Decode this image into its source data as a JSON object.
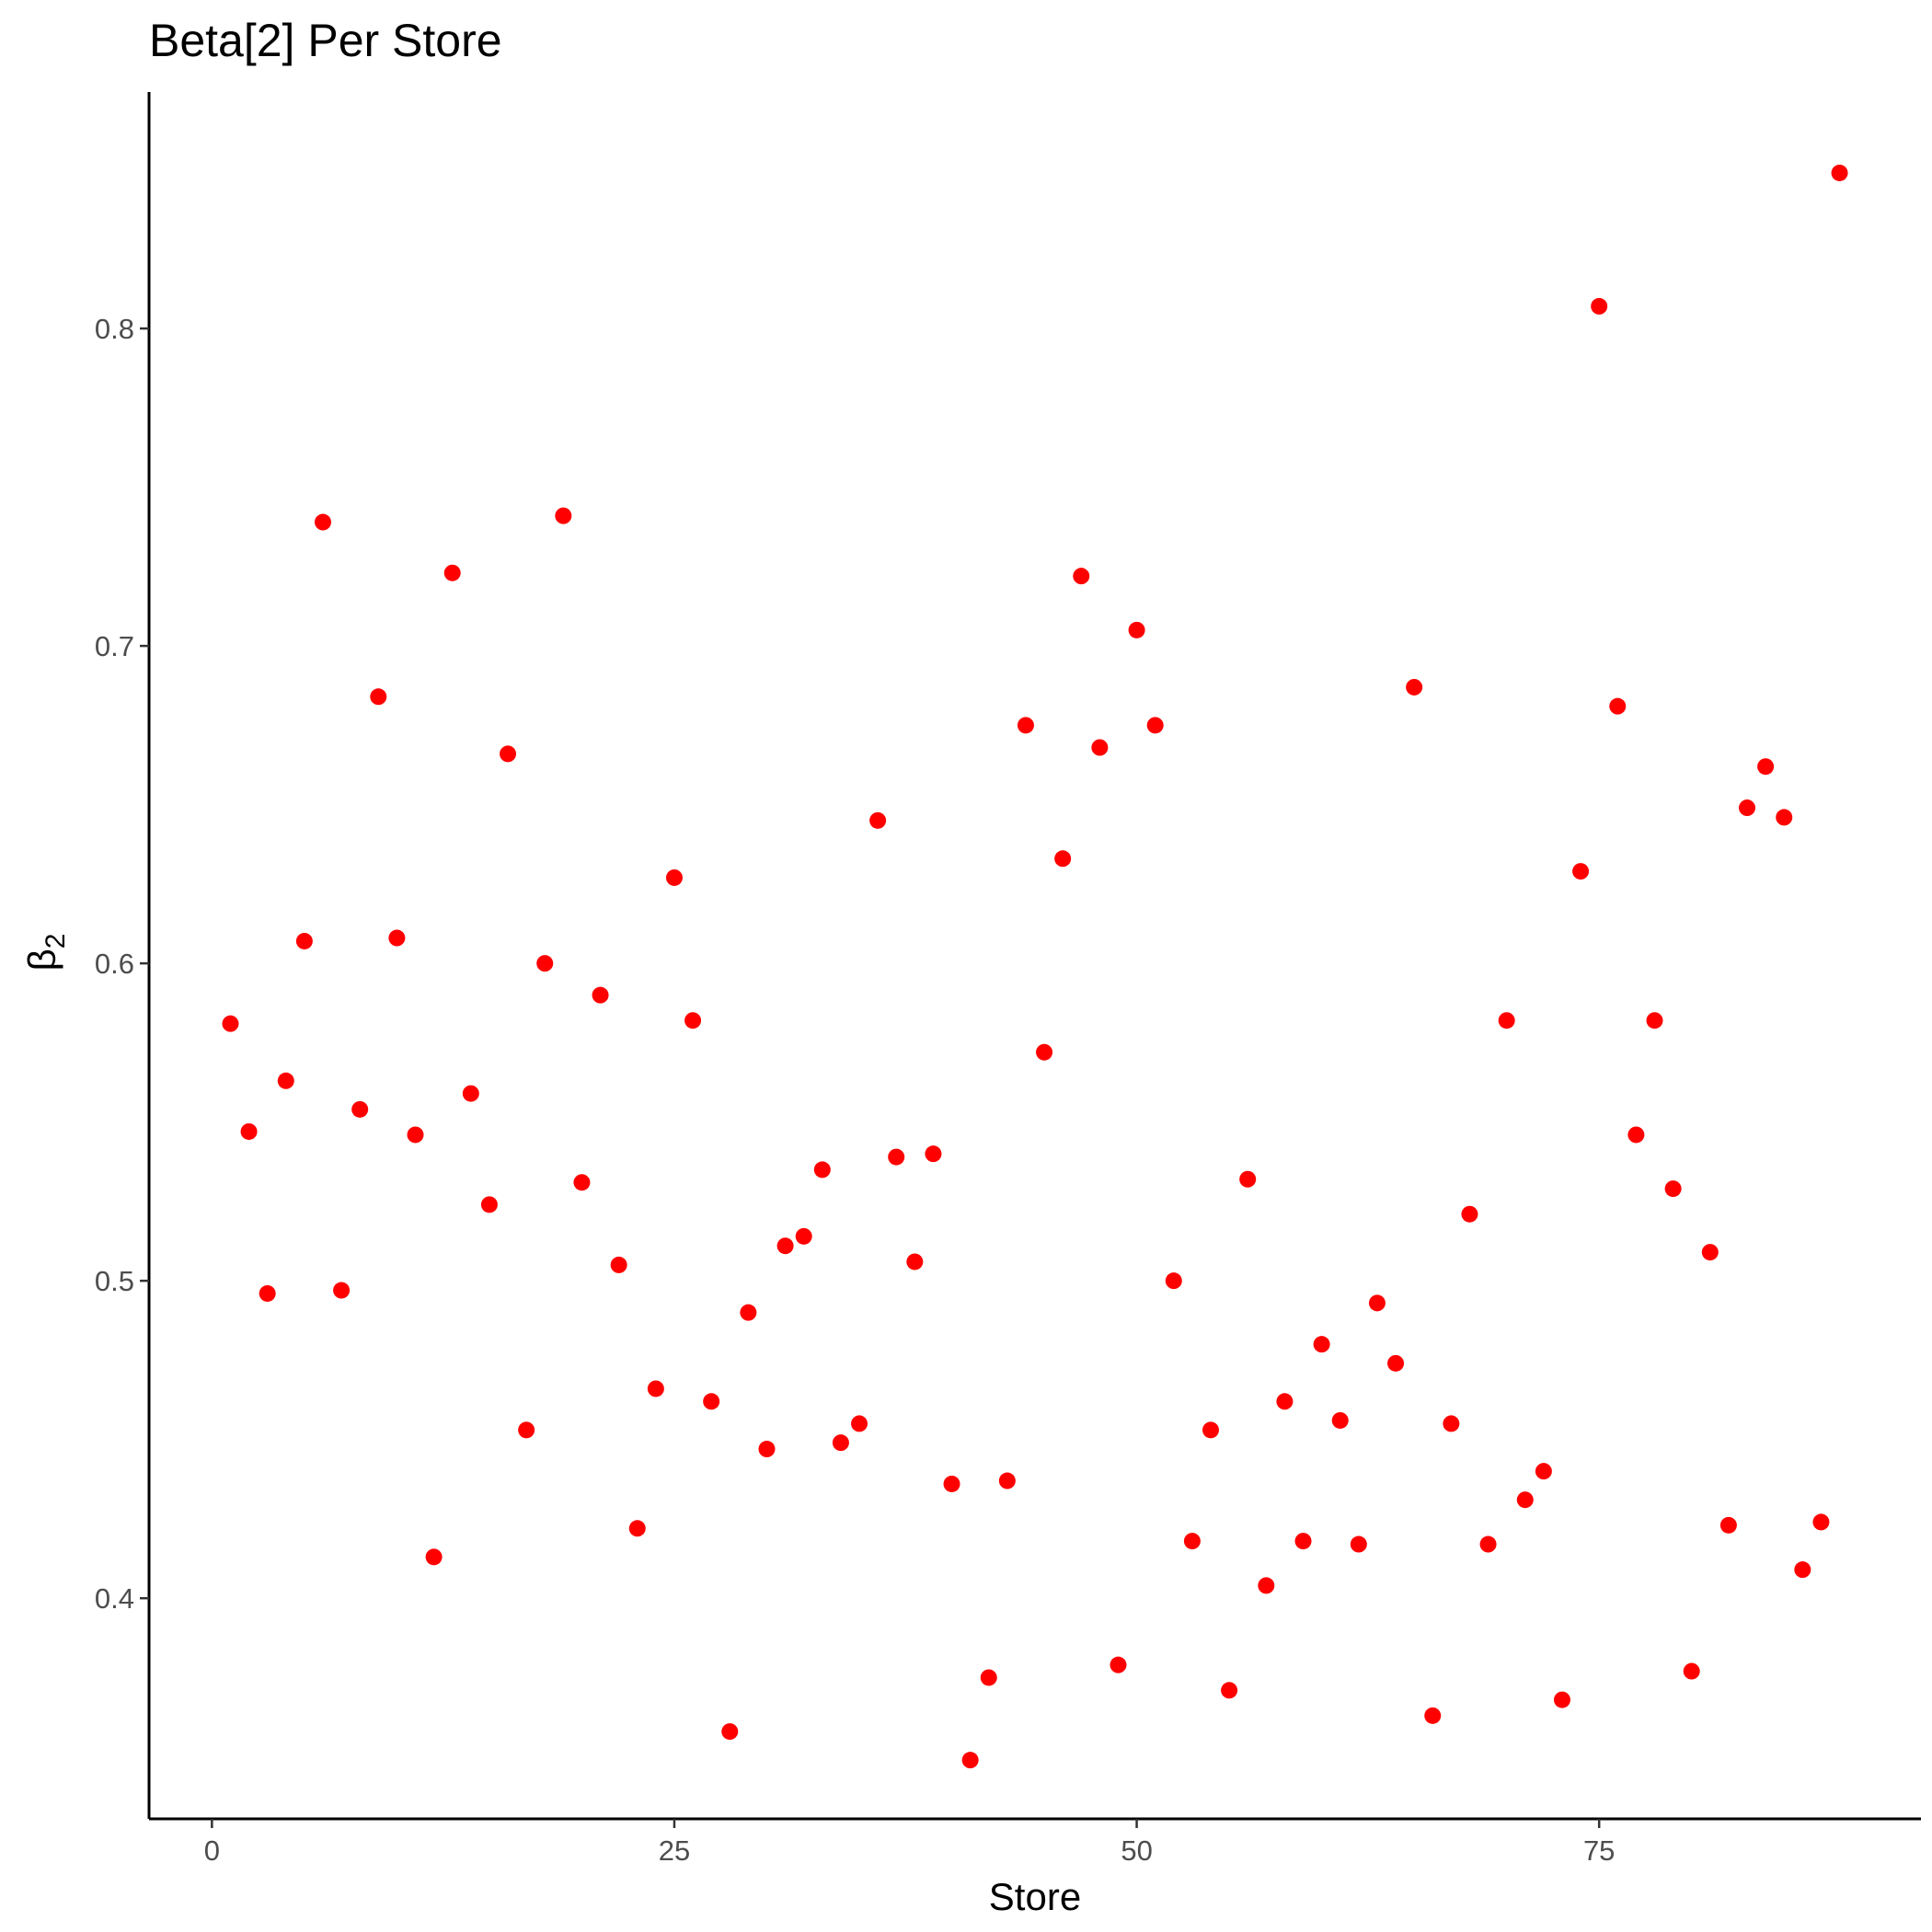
{
  "chart_data": {
    "type": "scatter",
    "title": "Beta[2] Per Store",
    "xlabel": "Store",
    "ylabel": "β",
    "ylabel_subscript": "2",
    "xlim": [
      -3.4,
      92.4
    ],
    "ylim": [
      0.3305,
      0.8745
    ],
    "xticks": [
      0,
      25,
      50,
      75
    ],
    "yticks": [
      0.4,
      0.5,
      0.6,
      0.7,
      0.8
    ],
    "xtick_labels": [
      "0",
      "25",
      "50",
      "75"
    ],
    "ytick_labels": [
      "0.4",
      "0.5",
      "0.6",
      "0.7",
      "0.8"
    ],
    "grid": false,
    "point_color": "#ff0000",
    "series": [
      {
        "x": [
          1,
          2,
          3,
          4,
          5,
          6,
          7,
          8,
          9,
          10,
          11,
          12,
          13,
          14,
          15,
          16,
          17,
          18,
          19,
          20,
          21,
          22,
          23,
          24,
          25,
          26,
          27,
          28,
          29,
          30,
          31,
          32,
          33,
          34,
          35,
          36,
          37,
          38,
          39,
          40,
          41,
          42,
          43,
          44,
          45,
          46,
          47,
          48,
          49,
          50,
          51,
          52,
          53,
          54,
          55,
          56,
          57,
          58,
          59,
          60,
          61,
          62,
          63,
          64,
          65,
          66,
          67,
          68,
          69,
          70,
          71,
          72,
          73,
          74,
          75,
          76,
          77,
          78,
          79,
          80,
          81,
          82,
          83,
          84,
          85,
          86,
          87,
          88
        ],
        "y": [
          0.581,
          0.547,
          0.496,
          0.563,
          0.607,
          0.739,
          0.497,
          0.554,
          0.684,
          0.608,
          0.546,
          0.413,
          0.723,
          0.559,
          0.524,
          0.666,
          0.453,
          0.6,
          0.741,
          0.531,
          0.59,
          0.505,
          0.422,
          0.466,
          0.627,
          0.582,
          0.462,
          0.358,
          0.49,
          0.447,
          0.511,
          0.514,
          0.535,
          0.449,
          0.455,
          0.645,
          0.539,
          0.506,
          0.54,
          0.436,
          0.349,
          0.375,
          0.437,
          0.675,
          0.572,
          0.633,
          0.722,
          0.668,
          0.379,
          0.705,
          0.675,
          0.5,
          0.418,
          0.453,
          0.371,
          0.532,
          0.404,
          0.462,
          0.418,
          0.48,
          0.456,
          0.417,
          0.493,
          0.474,
          0.687,
          0.363,
          0.455,
          0.521,
          0.417,
          0.582,
          0.431,
          0.44,
          0.368,
          0.629,
          0.807,
          0.681,
          0.546,
          0.582,
          0.529,
          0.377,
          0.509,
          0.423,
          0.649,
          0.662,
          0.646,
          0.409,
          0.424,
          0.849
        ]
      }
    ]
  }
}
